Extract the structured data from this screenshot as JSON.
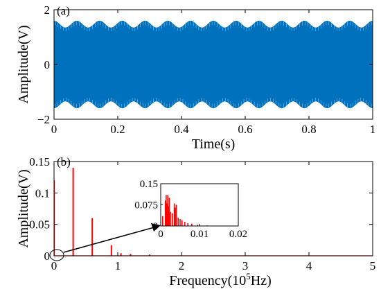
{
  "chart_data": [
    {
      "type": "line",
      "panel_label": "(a)",
      "xlabel": "Time(s)",
      "ylabel": "Amplitude(V)",
      "xlim": [
        0,
        1
      ],
      "ylim": [
        -2,
        2
      ],
      "xticks": [
        "0",
        "0.2",
        "0.4",
        "0.6",
        "0.8",
        "1"
      ],
      "yticks": [
        "−2",
        "0",
        "2"
      ],
      "color": "#0072BD",
      "series": [
        {
          "envelope_max": 1.6,
          "envelope_min": 1.35,
          "envelope_cycles": 14
        }
      ]
    },
    {
      "type": "bar",
      "panel_label": "(b)",
      "xlabel_main": "Frequency(10",
      "xlabel_sup": "5",
      "xlabel_tail": "Hz)",
      "ylabel": "Amplitude(V)",
      "xlim": [
        0,
        5
      ],
      "ylim": [
        0,
        0.15
      ],
      "xticks": [
        "0",
        "1",
        "2",
        "3",
        "4",
        "5"
      ],
      "yticks": [
        "0",
        "0.05",
        "0.1",
        "0.15"
      ],
      "color": "#FF0000",
      "spikes": [
        {
          "x": 0.3,
          "y": 0.14
        },
        {
          "x": 0.6,
          "y": 0.06
        },
        {
          "x": 0.9,
          "y": 0.017
        },
        {
          "x": 1.05,
          "y": 0.004
        },
        {
          "x": 1.2,
          "y": 0.003
        },
        {
          "x": 1.5,
          "y": 0.002
        }
      ],
      "inset": {
        "xlim": [
          0,
          0.02
        ],
        "ylim": [
          0,
          0.15
        ],
        "xticks": [
          "0",
          "0.01",
          "0.02"
        ],
        "yticks": [
          "0",
          "0.075",
          "0.15"
        ],
        "spikes": [
          {
            "x": 0.0005,
            "y": 0.035
          },
          {
            "x": 0.0012,
            "y": 0.09
          },
          {
            "x": 0.0014,
            "y": 0.11
          },
          {
            "x": 0.0016,
            "y": 0.08
          },
          {
            "x": 0.0018,
            "y": 0.11
          },
          {
            "x": 0.002,
            "y": 0.07
          },
          {
            "x": 0.0022,
            "y": 0.1
          },
          {
            "x": 0.0025,
            "y": 0.05
          },
          {
            "x": 0.003,
            "y": 0.045
          },
          {
            "x": 0.0035,
            "y": 0.08
          },
          {
            "x": 0.0037,
            "y": 0.065
          },
          {
            "x": 0.004,
            "y": 0.075
          },
          {
            "x": 0.0045,
            "y": 0.03
          },
          {
            "x": 0.005,
            "y": 0.025
          },
          {
            "x": 0.0055,
            "y": 0.02
          },
          {
            "x": 0.0062,
            "y": 0.015
          },
          {
            "x": 0.007,
            "y": 0.01
          },
          {
            "x": 0.008,
            "y": 0.008
          },
          {
            "x": 0.0095,
            "y": 0.004
          },
          {
            "x": 0.012,
            "y": 0.002
          }
        ]
      }
    }
  ]
}
